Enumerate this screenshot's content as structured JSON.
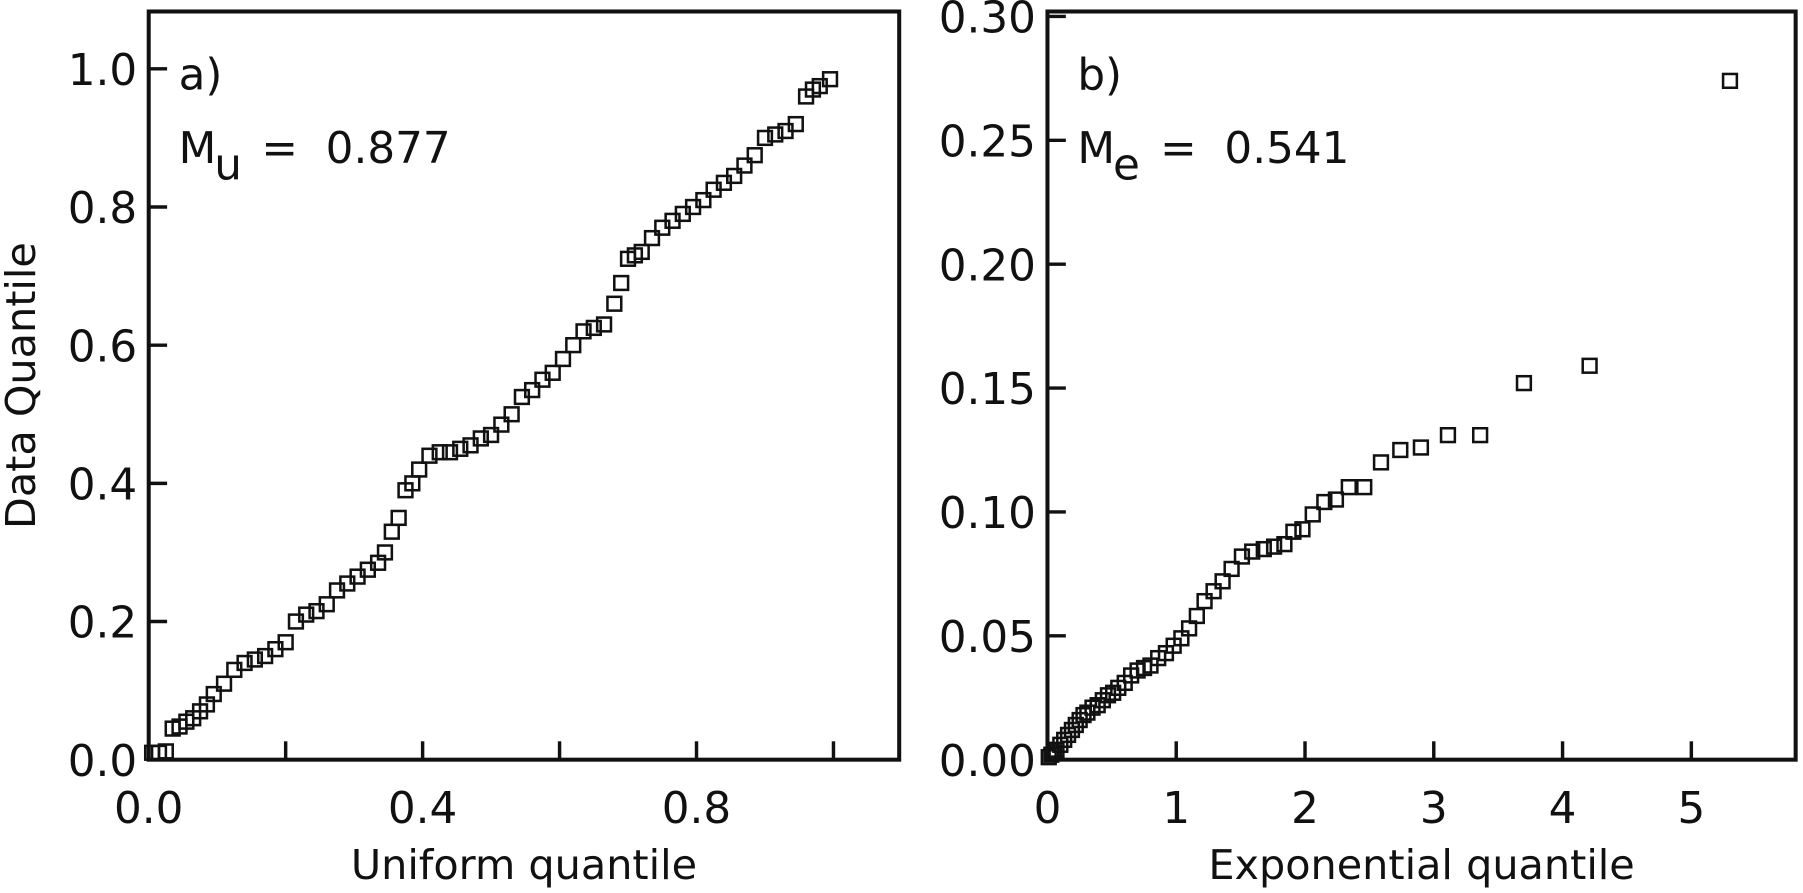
{
  "chart_data": [
    {
      "type": "scatter",
      "color": "#111111",
      "panel_label": "a)",
      "stat_symbol": "M",
      "stat_subscript": "u",
      "stat_text": "=  0.877",
      "x_label": "Uniform quantile",
      "y_label": "Data Quantile",
      "xlim": [
        0,
        1.096
      ],
      "ylim": [
        0,
        1.083
      ],
      "xticks": [
        {
          "value": 0,
          "label": "0.0"
        },
        {
          "value": 0.4,
          "label": "0.4"
        },
        {
          "value": 0.8,
          "label": "0.8"
        }
      ],
      "xminor_ticks": [
        0.2,
        0.6,
        1.0
      ],
      "yticks": [
        {
          "value": 0,
          "label": "0.0"
        },
        {
          "value": 0.2,
          "label": "0.2"
        },
        {
          "value": 0.4,
          "label": "0.4"
        },
        {
          "value": 0.6,
          "label": "0.6"
        },
        {
          "value": 0.8,
          "label": "0.8"
        },
        {
          "value": 1.0,
          "label": "1.0"
        }
      ],
      "x": [
        0.005,
        0.015,
        0.025,
        0.035,
        0.045,
        0.055,
        0.065,
        0.075,
        0.085,
        0.095,
        0.11,
        0.125,
        0.14,
        0.155,
        0.17,
        0.185,
        0.2,
        0.215,
        0.23,
        0.245,
        0.26,
        0.275,
        0.29,
        0.305,
        0.32,
        0.335,
        0.345,
        0.355,
        0.365,
        0.375,
        0.385,
        0.395,
        0.41,
        0.425,
        0.44,
        0.455,
        0.47,
        0.485,
        0.5,
        0.515,
        0.53,
        0.545,
        0.56,
        0.575,
        0.59,
        0.605,
        0.62,
        0.635,
        0.65,
        0.665,
        0.68,
        0.69,
        0.7,
        0.71,
        0.72,
        0.735,
        0.75,
        0.765,
        0.78,
        0.795,
        0.81,
        0.825,
        0.84,
        0.855,
        0.87,
        0.885,
        0.9,
        0.915,
        0.93,
        0.945,
        0.96,
        0.97,
        0.98,
        0.995
      ],
      "values": [
        0.01,
        0.01,
        0.012,
        0.045,
        0.048,
        0.055,
        0.06,
        0.07,
        0.08,
        0.095,
        0.11,
        0.13,
        0.14,
        0.145,
        0.15,
        0.16,
        0.17,
        0.2,
        0.21,
        0.215,
        0.225,
        0.245,
        0.255,
        0.265,
        0.275,
        0.285,
        0.3,
        0.33,
        0.35,
        0.39,
        0.4,
        0.42,
        0.44,
        0.445,
        0.445,
        0.45,
        0.455,
        0.465,
        0.47,
        0.485,
        0.5,
        0.525,
        0.535,
        0.55,
        0.56,
        0.58,
        0.6,
        0.62,
        0.625,
        0.63,
        0.66,
        0.69,
        0.725,
        0.73,
        0.735,
        0.755,
        0.77,
        0.78,
        0.79,
        0.8,
        0.81,
        0.825,
        0.835,
        0.845,
        0.86,
        0.875,
        0.9,
        0.905,
        0.91,
        0.92,
        0.96,
        0.97,
        0.975,
        0.985
      ]
    },
    {
      "type": "scatter",
      "color": "#111111",
      "panel_label": "b)",
      "stat_symbol": "M",
      "stat_subscript": "e",
      "stat_text": "=  0.541",
      "x_label": "Exponential quantile",
      "xlim": [
        0,
        5.81
      ],
      "ylim": [
        0,
        0.302
      ],
      "xticks": [
        0,
        1,
        2,
        3,
        4,
        5
      ],
      "yticks": [
        {
          "value": 0,
          "label": "0.00"
        },
        {
          "value": 0.05,
          "label": "0.05"
        },
        {
          "value": 0.1,
          "label": "0.10"
        },
        {
          "value": 0.15,
          "label": "0.15"
        },
        {
          "value": 0.2,
          "label": "0.20"
        },
        {
          "value": 0.25,
          "label": "0.25"
        },
        {
          "value": 0.3,
          "label": "0.30"
        }
      ],
      "x": [
        0.01,
        0.03,
        0.05,
        0.07,
        0.1,
        0.13,
        0.16,
        0.19,
        0.22,
        0.25,
        0.28,
        0.31,
        0.35,
        0.39,
        0.43,
        0.47,
        0.51,
        0.55,
        0.6,
        0.65,
        0.7,
        0.75,
        0.8,
        0.86,
        0.92,
        0.98,
        1.04,
        1.1,
        1.16,
        1.22,
        1.29,
        1.36,
        1.43,
        1.51,
        1.59,
        1.68,
        1.76,
        1.84,
        1.91,
        1.98,
        2.06,
        2.15,
        2.24,
        2.34,
        2.46,
        2.59,
        2.74,
        2.9,
        3.11,
        3.36,
        3.7,
        4.21,
        5.3
      ],
      "values": [
        0.001,
        0.002,
        0.003,
        0.004,
        0.006,
        0.008,
        0.01,
        0.012,
        0.014,
        0.016,
        0.018,
        0.019,
        0.021,
        0.022,
        0.024,
        0.026,
        0.027,
        0.029,
        0.031,
        0.034,
        0.036,
        0.037,
        0.038,
        0.041,
        0.043,
        0.046,
        0.049,
        0.053,
        0.058,
        0.064,
        0.068,
        0.072,
        0.077,
        0.082,
        0.084,
        0.085,
        0.086,
        0.087,
        0.092,
        0.093,
        0.099,
        0.104,
        0.105,
        0.11,
        0.11,
        0.12,
        0.125,
        0.126,
        0.131,
        0.131,
        0.152,
        0.159,
        0.274
      ]
    }
  ]
}
